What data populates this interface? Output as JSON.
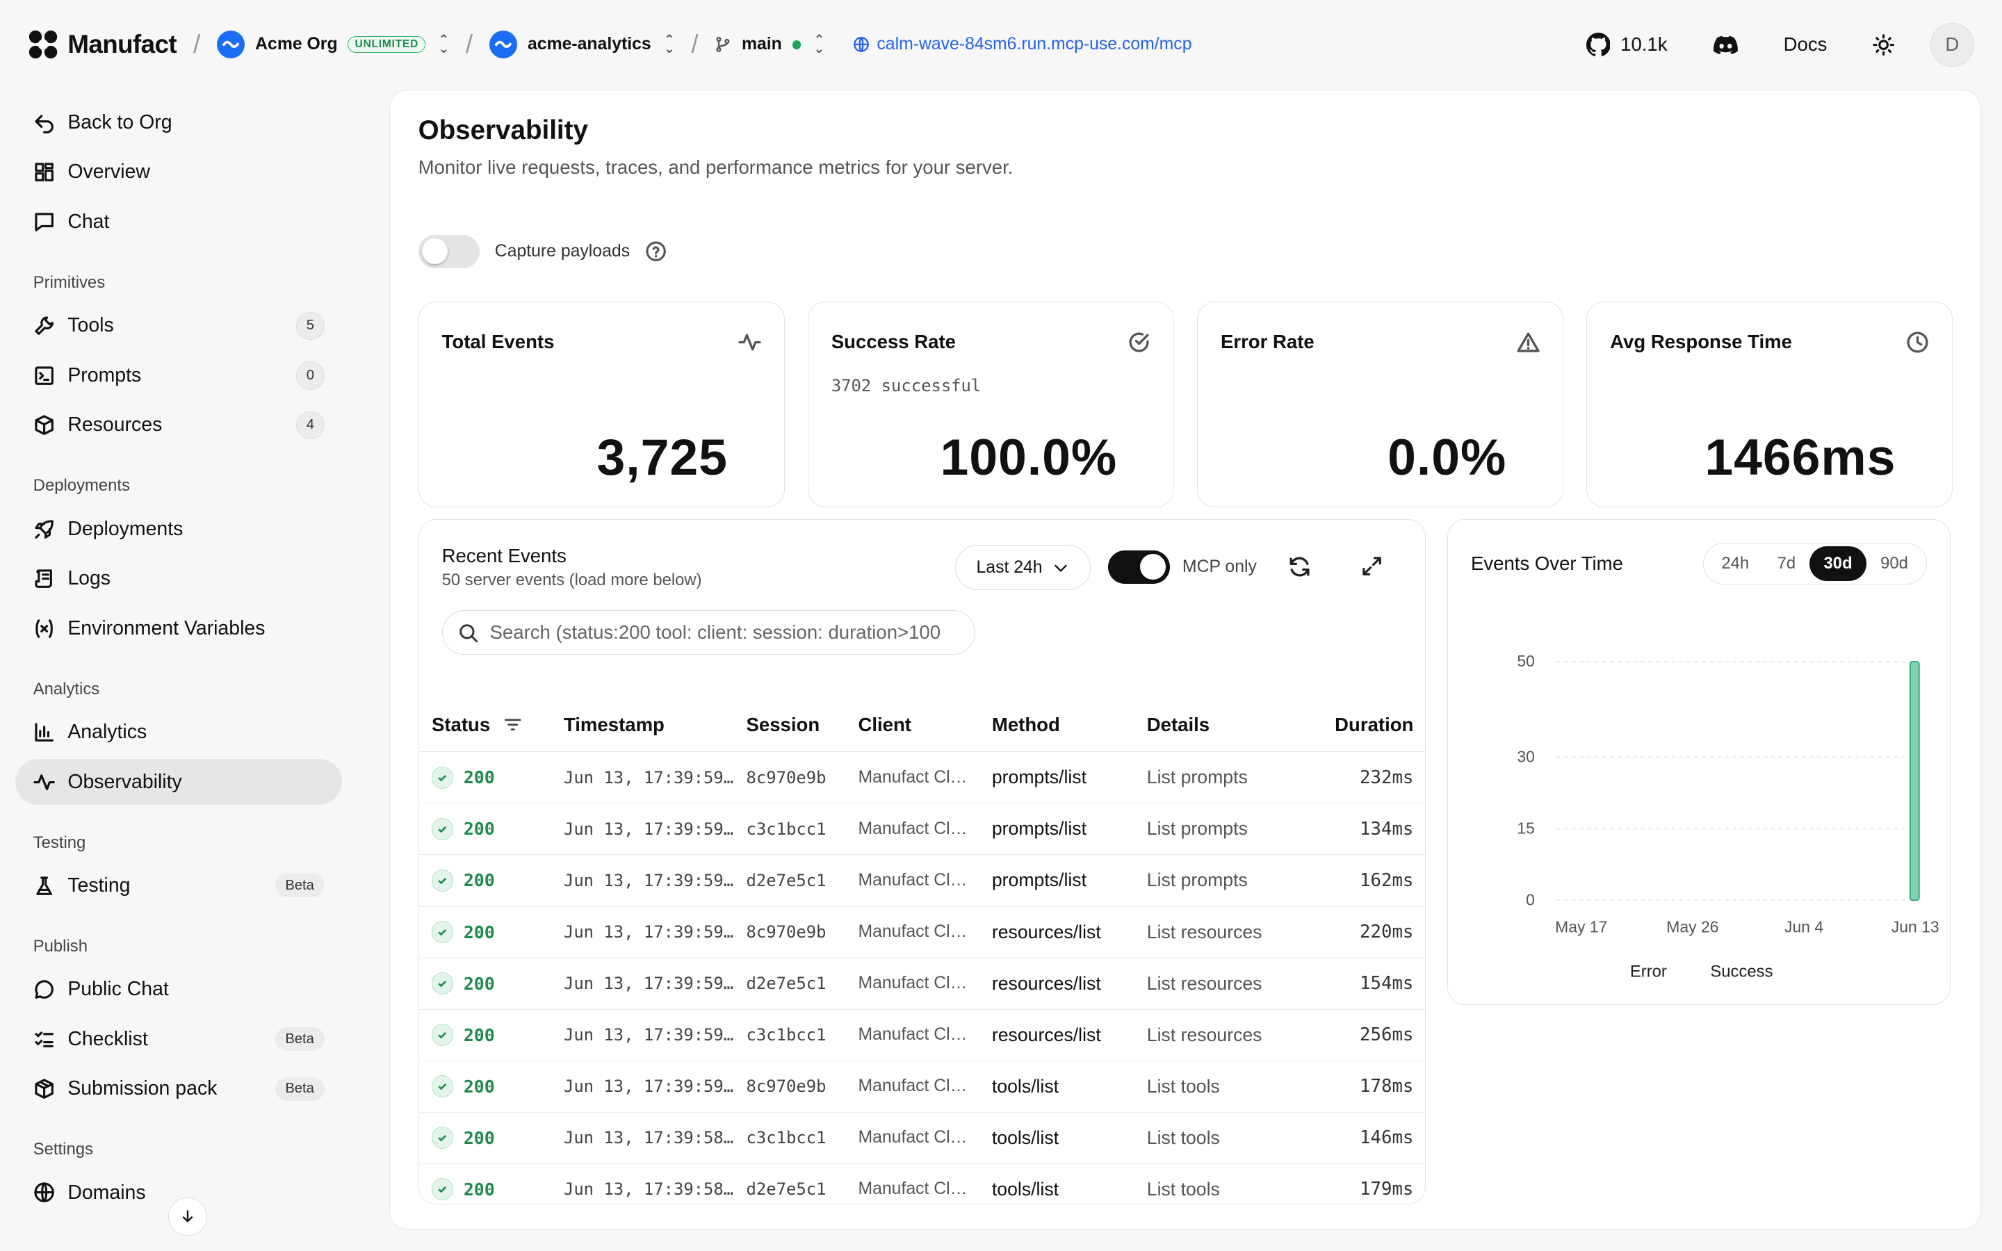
{
  "topbar": {
    "brand": "Manufact",
    "org": "Acme Org",
    "org_badge": "UNLIMITED",
    "project": "acme-analytics",
    "branch": "main",
    "url": "calm-wave-84sm6.run.mcp-use.com/mcp",
    "github_stars": "10.1k",
    "docs": "Docs",
    "avatar": "D"
  },
  "sidebar": {
    "top": [
      {
        "label": "Back to Org",
        "icon": "back-arrow-icon"
      },
      {
        "label": "Overview",
        "icon": "grid-icon"
      },
      {
        "label": "Chat",
        "icon": "chat-icon"
      }
    ],
    "primitives_title": "Primitives",
    "primitives": [
      {
        "label": "Tools",
        "count": "5"
      },
      {
        "label": "Prompts",
        "count": "0"
      },
      {
        "label": "Resources",
        "count": "4"
      }
    ],
    "deployments_title": "Deployments",
    "deployments": [
      {
        "label": "Deployments"
      },
      {
        "label": "Logs"
      },
      {
        "label": "Environment Variables"
      }
    ],
    "analytics_title": "Analytics",
    "analytics": [
      {
        "label": "Analytics"
      },
      {
        "label": "Observability"
      }
    ],
    "testing_title": "Testing",
    "testing": [
      {
        "label": "Testing",
        "badge": "Beta"
      }
    ],
    "publish_title": "Publish",
    "publish": [
      {
        "label": "Public Chat"
      },
      {
        "label": "Checklist",
        "badge": "Beta"
      },
      {
        "label": "Submission pack",
        "badge": "Beta"
      }
    ],
    "settings_title": "Settings",
    "settings": [
      {
        "label": "Domains"
      }
    ]
  },
  "page": {
    "title": "Observability",
    "subtitle": "Monitor live requests, traces, and performance metrics for your server.",
    "capture_label": "Capture payloads",
    "capture_on": false
  },
  "cards": [
    {
      "title": "Total Events",
      "sub": "",
      "value": "3,725",
      "icon": "activity-icon"
    },
    {
      "title": "Success Rate",
      "sub": "3702 successful",
      "value": "100.0%",
      "icon": "check-circle-icon"
    },
    {
      "title": "Error Rate",
      "sub": "",
      "value": "0.0%",
      "icon": "warning-icon"
    },
    {
      "title": "Avg Response Time",
      "sub": "",
      "value": "1466ms",
      "icon": "clock-icon"
    }
  ],
  "events": {
    "title": "Recent Events",
    "subtitle": "50 server events (load more below)",
    "range": "Last 24h",
    "mcp_only_label": "MCP only",
    "mcp_only": true,
    "search_placeholder": "Search (status:200 tool: client: session: duration>100",
    "columns": [
      "Status",
      "Timestamp",
      "Session",
      "Client",
      "Method",
      "Details",
      "Duration"
    ],
    "rows": [
      {
        "status": "200",
        "ts": "Jun 13, 17:39:59…",
        "session": "8c970e9b",
        "client": "Manufact Cl…",
        "method": "prompts/list",
        "details": "List prompts",
        "duration": "232ms"
      },
      {
        "status": "200",
        "ts": "Jun 13, 17:39:59…",
        "session": "c3c1bcc1",
        "client": "Manufact Cl…",
        "method": "prompts/list",
        "details": "List prompts",
        "duration": "134ms"
      },
      {
        "status": "200",
        "ts": "Jun 13, 17:39:59…",
        "session": "d2e7e5c1",
        "client": "Manufact Cl…",
        "method": "prompts/list",
        "details": "List prompts",
        "duration": "162ms"
      },
      {
        "status": "200",
        "ts": "Jun 13, 17:39:59…",
        "session": "8c970e9b",
        "client": "Manufact Cl…",
        "method": "resources/list",
        "details": "List resources",
        "duration": "220ms"
      },
      {
        "status": "200",
        "ts": "Jun 13, 17:39:59…",
        "session": "d2e7e5c1",
        "client": "Manufact Cl…",
        "method": "resources/list",
        "details": "List resources",
        "duration": "154ms"
      },
      {
        "status": "200",
        "ts": "Jun 13, 17:39:59…",
        "session": "c3c1bcc1",
        "client": "Manufact Cl…",
        "method": "resources/list",
        "details": "List resources",
        "duration": "256ms"
      },
      {
        "status": "200",
        "ts": "Jun 13, 17:39:59…",
        "session": "8c970e9b",
        "client": "Manufact Cl…",
        "method": "tools/list",
        "details": "List tools",
        "duration": "178ms"
      },
      {
        "status": "200",
        "ts": "Jun 13, 17:39:58…",
        "session": "c3c1bcc1",
        "client": "Manufact Cl…",
        "method": "tools/list",
        "details": "List tools",
        "duration": "146ms"
      },
      {
        "status": "200",
        "ts": "Jun 13, 17:39:58…",
        "session": "d2e7e5c1",
        "client": "Manufact Cl…",
        "method": "tools/list",
        "details": "List tools",
        "duration": "179ms"
      }
    ]
  },
  "chart": {
    "title": "Events Over Time",
    "ranges": [
      "24h",
      "7d",
      "30d",
      "90d"
    ],
    "active_range": "30d"
  },
  "chart_data": {
    "type": "bar",
    "title": "Events Over Time",
    "xlabel": "",
    "ylabel": "",
    "x_ticks": [
      "May 17",
      "May 26",
      "Jun 4",
      "Jun 13"
    ],
    "y_ticks": [
      0,
      15,
      30,
      50
    ],
    "ylim": [
      0,
      50
    ],
    "x_start": "May 15",
    "x_end": "Jun 13",
    "series": [
      {
        "name": "Error",
        "color": "#e5484d",
        "points": []
      },
      {
        "name": "Success",
        "color": "#7fd3b0",
        "points": [
          {
            "x": "Jun 13",
            "y": 50
          }
        ]
      }
    ],
    "grid": true,
    "legend": "bottom"
  },
  "colors": {
    "accent": "#111111",
    "success": "#1f8a4c",
    "link": "#2563eb"
  }
}
